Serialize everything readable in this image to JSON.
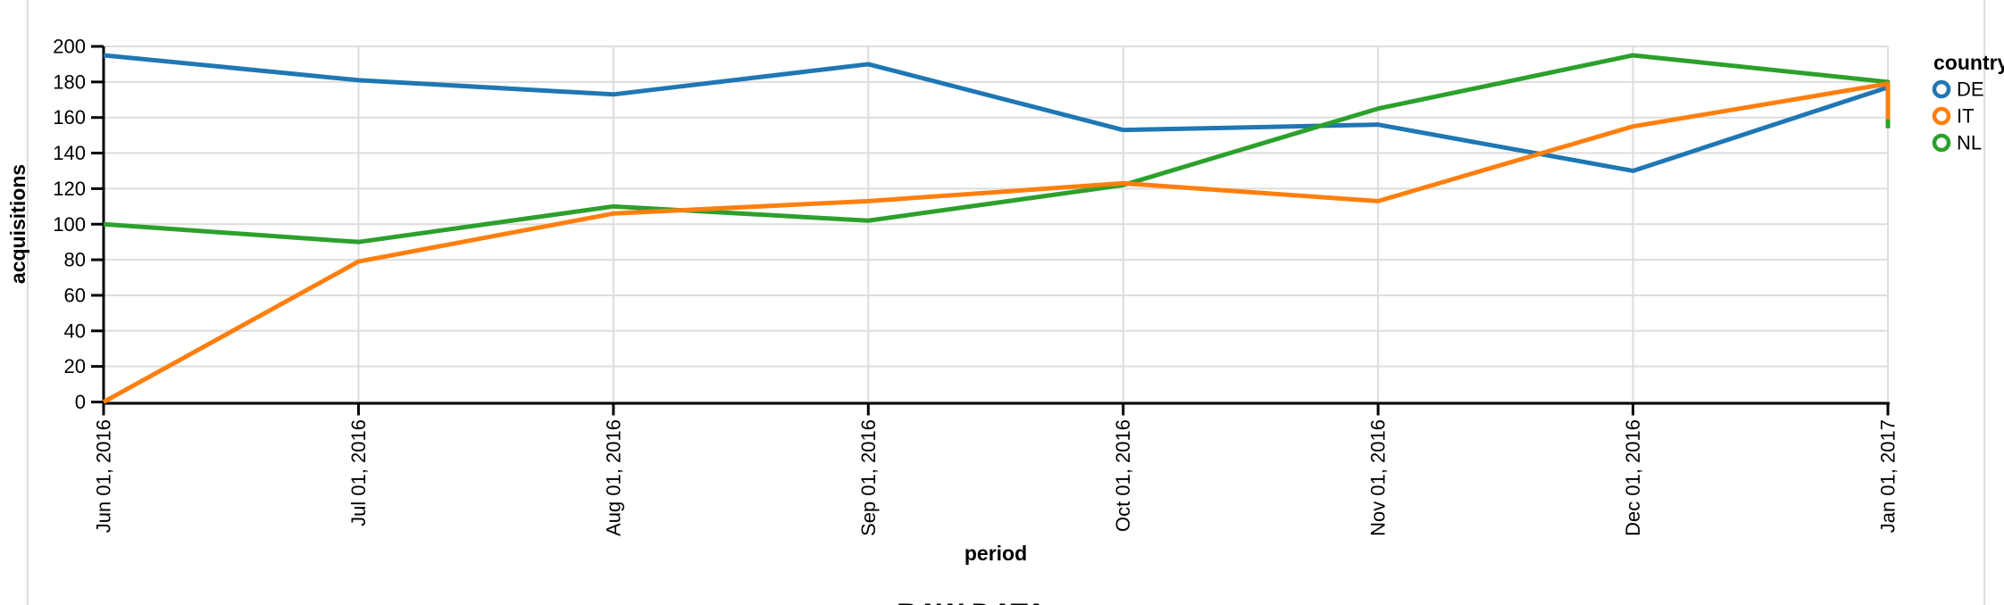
{
  "page": {
    "raw_data_heading": "RAW DATA"
  },
  "chart": {
    "legend_title": "country",
    "colors": {
      "grid": "#dddddd",
      "axis": "#000000",
      "text": "#000000"
    }
  },
  "chart_data": {
    "type": "line",
    "title": "",
    "xlabel": "period",
    "ylabel": "acquisitions",
    "x": [
      "Jun 01, 2016",
      "Jul 01, 2016",
      "Aug 01, 2016",
      "Sep 01, 2016",
      "Oct 01, 2016",
      "Nov 01, 2016",
      "Dec 01, 2016",
      "Jan 01, 2017"
    ],
    "series": [
      {
        "name": "DE",
        "color": "#1f77b4",
        "values": [
          195,
          181,
          173,
          190,
          153,
          156,
          130,
          177
        ]
      },
      {
        "name": "IT",
        "color": "#ff7f0e",
        "values": [
          0,
          79,
          106,
          113,
          123,
          113,
          155,
          179
        ],
        "extra_points": [
          {
            "x": "Jan 01, 2017",
            "value": 159
          }
        ]
      },
      {
        "name": "NL",
        "color": "#2ca02c",
        "values": [
          100,
          90,
          110,
          102,
          122,
          165,
          195,
          180
        ],
        "extra_points": [
          {
            "x": "Jan 01, 2017",
            "value": 154
          }
        ]
      }
    ],
    "draw_order": [
      "DE",
      "NL",
      "IT"
    ],
    "ylim": [
      0,
      200
    ],
    "y_ticks": [
      0,
      20,
      40,
      60,
      80,
      100,
      120,
      140,
      160,
      180,
      200
    ],
    "grid": true,
    "legend_position": "right"
  }
}
